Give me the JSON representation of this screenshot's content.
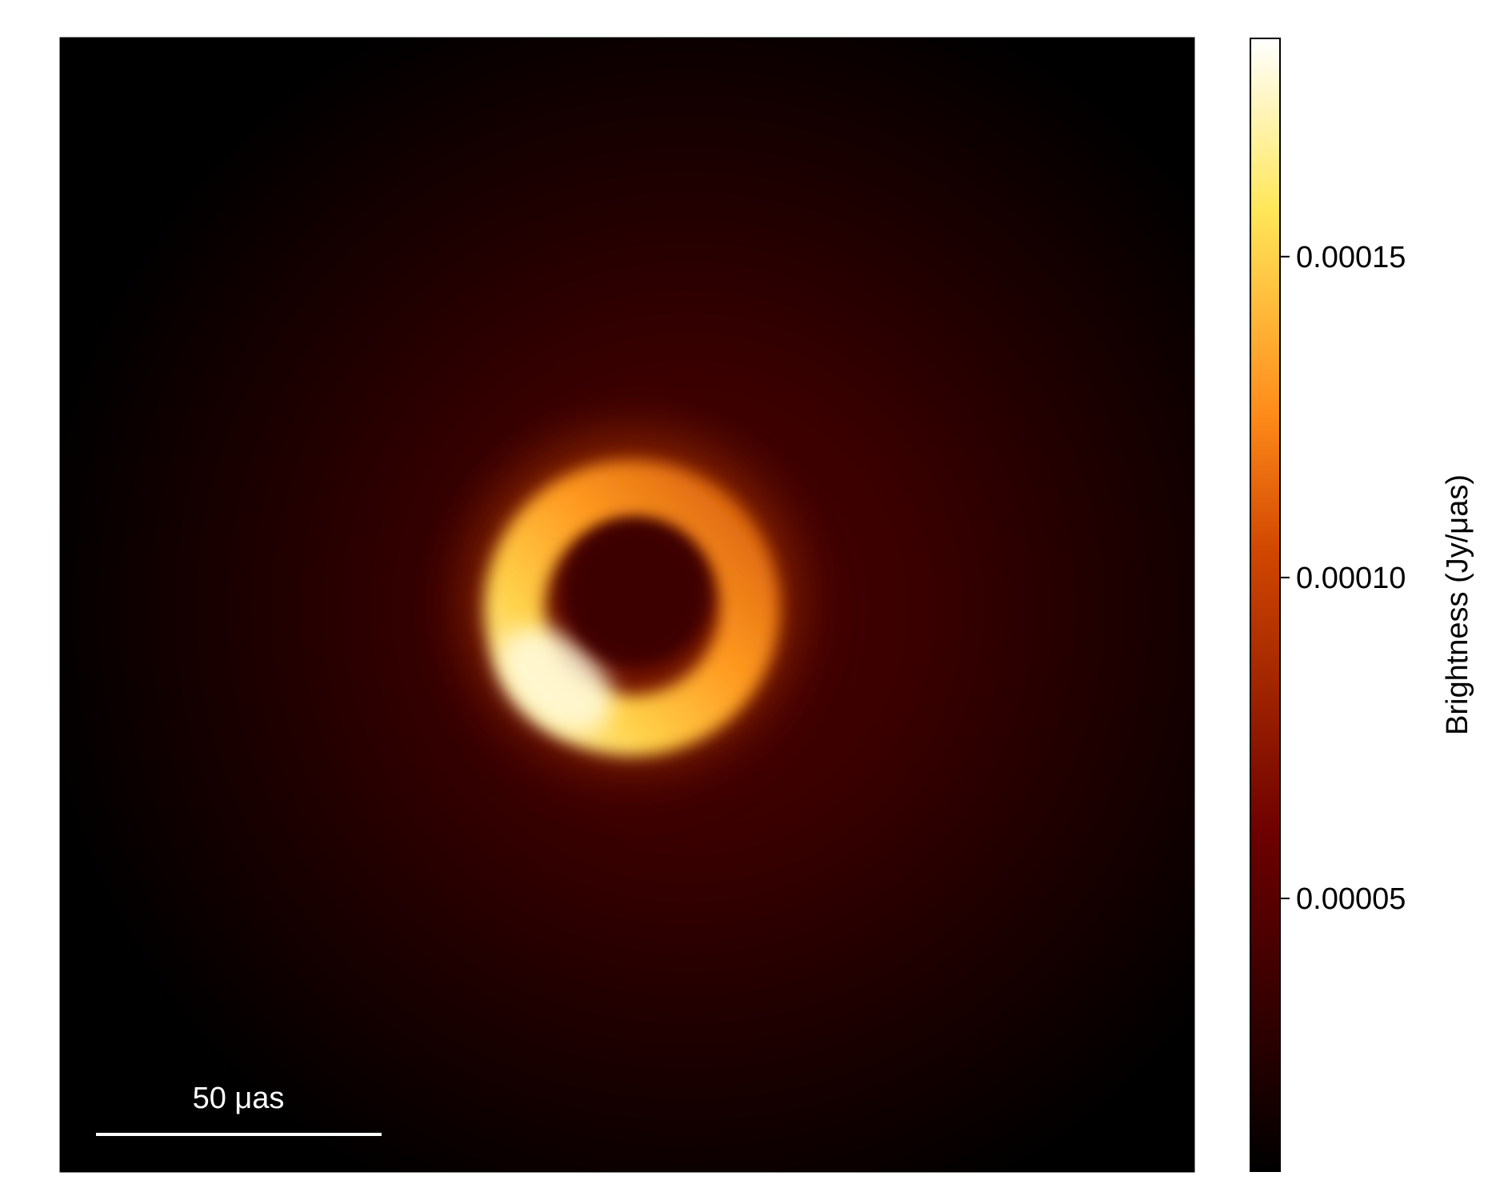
{
  "chart_data": {
    "type": "heatmap",
    "title": "",
    "colormap": {
      "name": "afmhot",
      "stops": [
        "#000000",
        "#6e0000",
        "#d24800",
        "#ff8c1a",
        "#ffe75a",
        "#ffffff"
      ]
    },
    "colorbar": {
      "label": "Brightness (Jy/μas)",
      "range": [
        7.5e-06,
        0.000184
      ],
      "ticks": [
        {
          "value": 5e-05,
          "label": "0.00005"
        },
        {
          "value": 0.0001,
          "label": "0.00010"
        },
        {
          "value": 0.00015,
          "label": "0.00015"
        }
      ]
    },
    "image": {
      "description": "asymmetric ring",
      "background_level": 1.5e-05,
      "diffuse_glow_peak": 4e-05,
      "ring_peak_brightness": 0.000184,
      "ring_interior_level": 3.2e-05,
      "brightest_side": "lower-left",
      "units": "Jy/μas"
    },
    "scale_bar": {
      "label": "50 μas",
      "length_uas": 50
    },
    "axes_visible": false,
    "grid": false,
    "legend": "none"
  }
}
